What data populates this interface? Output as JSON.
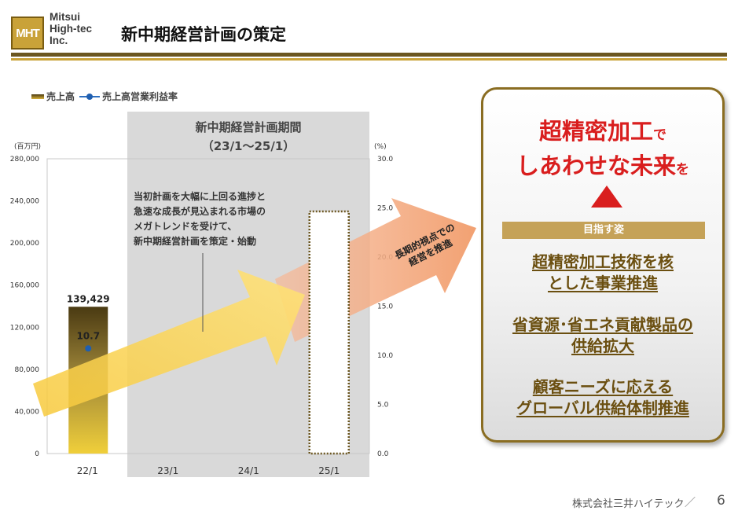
{
  "header": {
    "logo_mark": "MHT",
    "logo_lines": [
      "Mitsui",
      "High-tec",
      "Inc."
    ],
    "title": "新中期経営計画の策定"
  },
  "legend": {
    "bar": "売上高",
    "line": "売上高営業利益率"
  },
  "period_box": {
    "title": "新中期経営計画期間",
    "subtitle": "（23/1～25/1）",
    "note_lines": [
      "当初計画を大幅に上回る進捗と",
      "急速な成長が見込まれる市場の",
      "メガトレンドを受けて、",
      "新中期経営計画を策定・始動"
    ]
  },
  "arrow_label": [
    "長期的視点での",
    "経営を推進"
  ],
  "chart_data": {
    "type": "bar",
    "categories": [
      "22/1",
      "23/1",
      "24/1",
      "25/1"
    ],
    "series": [
      {
        "name": "売上高",
        "axis": "left",
        "values": [
          139429,
          null,
          null,
          null
        ],
        "data_labels": [
          "139,429",
          "",
          "",
          ""
        ]
      },
      {
        "name": "売上高営業利益率",
        "axis": "right",
        "values": [
          10.7,
          null,
          null,
          null
        ],
        "data_labels": [
          "10.7",
          "",
          "",
          ""
        ]
      }
    ],
    "target_bar": {
      "category": "25/1",
      "style": "dashed outline, no value shown"
    },
    "y_left": {
      "unit": "(百万円)",
      "ylim": [
        0,
        280000
      ],
      "ticks": [
        "0",
        "40,000",
        "80,000",
        "120,000",
        "160,000",
        "200,000",
        "240,000",
        "280,000"
      ]
    },
    "y_right": {
      "unit": "(%)",
      "ylim": [
        0,
        30
      ],
      "ticks": [
        "0.0",
        "5.0",
        "10.0",
        "15.0",
        "20.0",
        "25.0",
        "30.0"
      ]
    },
    "colors": {
      "bar_top": "#4a3a12",
      "bar_bottom": "#f0cf3a",
      "line": "#1f5fb0",
      "period_shade": "#d9d9d9"
    }
  },
  "right_panel": {
    "slogan_line1_big": "超精密加工",
    "slogan_line1_small": "で",
    "slogan_line2_big": "しあわせな未来",
    "slogan_line2_small": "を",
    "goal_label": "目指す姿",
    "goals": [
      [
        "超精密加工技術を核",
        "とした事業推進"
      ],
      [
        "省資源･省エネ貢献製品の",
        "供給拡大"
      ],
      [
        "顧客ニーズに応える",
        "グローバル供給体制推進"
      ]
    ]
  },
  "footer": {
    "company": "株式会社三井ハイテック",
    "slash": "／",
    "page": "6"
  }
}
